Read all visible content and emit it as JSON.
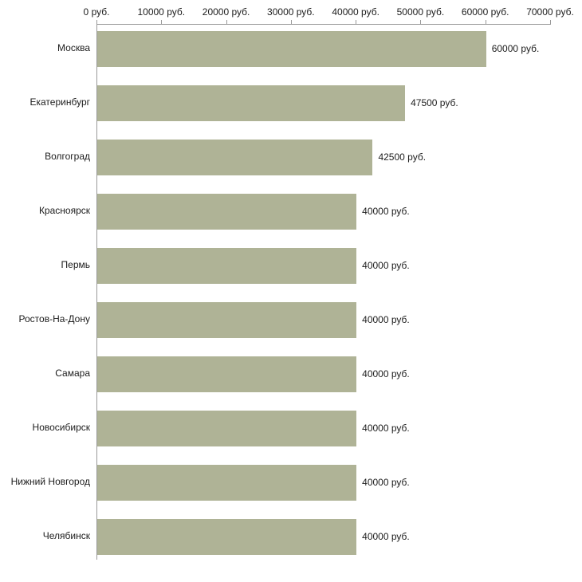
{
  "chart_data": {
    "type": "bar",
    "orientation": "horizontal",
    "title": "",
    "categories": [
      "Москва",
      "Екатеринбург",
      "Волгоград",
      "Красноярск",
      "Пермь",
      "Ростов-На-Дону",
      "Самара",
      "Новосибирск",
      "Нижний Новгород",
      "Челябинск"
    ],
    "values": [
      60000,
      47500,
      42500,
      40000,
      40000,
      40000,
      40000,
      40000,
      40000,
      40000
    ],
    "value_labels": [
      "60000 руб.",
      "47500 руб.",
      "42500 руб.",
      "40000 руб.",
      "40000 руб.",
      "40000 руб.",
      "40000 руб.",
      "40000 руб.",
      "40000 руб.",
      "40000 руб."
    ],
    "x_ticks": [
      0,
      10000,
      20000,
      30000,
      40000,
      50000,
      60000,
      70000
    ],
    "x_tick_labels": [
      "0 руб.",
      "10000 руб.",
      "20000 руб.",
      "30000 руб.",
      "40000 руб.",
      "50000 руб.",
      "60000 руб.",
      "70000 руб."
    ],
    "xlim": [
      0,
      70000
    ],
    "unit": "руб.",
    "grid": false,
    "legend": false,
    "bar_color": "#afb396",
    "axis_color": "#999999",
    "text_color": "#1c1c1c"
  }
}
